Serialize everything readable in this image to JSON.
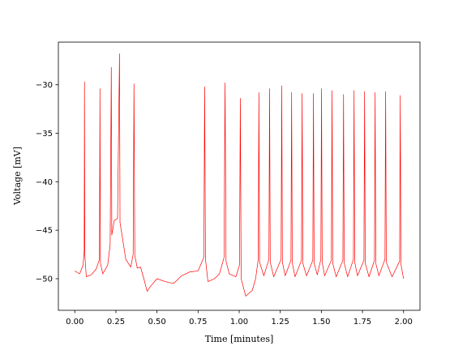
{
  "chart_data": {
    "type": "line",
    "xlabel": "Time [minutes]",
    "ylabel": "Voltage [mV]",
    "xlim": [
      -0.1,
      2.1
    ],
    "ylim": [
      -53.26,
      -25.6
    ],
    "xticks": [
      {
        "value": 0,
        "label": "0.00"
      },
      {
        "value": 0.25,
        "label": "0.25"
      },
      {
        "value": 0.5,
        "label": "0.50"
      },
      {
        "value": 0.75,
        "label": "0.75"
      },
      {
        "value": 1,
        "label": "1.00"
      },
      {
        "value": 1.25,
        "label": "1.25"
      },
      {
        "value": 1.5,
        "label": "1.50"
      },
      {
        "value": 1.75,
        "label": "1.75"
      },
      {
        "value": 2,
        "label": "2.00"
      }
    ],
    "yticks": [
      {
        "value": -50,
        "label": "−50"
      },
      {
        "value": -45,
        "label": "−45"
      },
      {
        "value": -40,
        "label": "−40"
      },
      {
        "value": -35,
        "label": "−35"
      },
      {
        "value": -30,
        "label": "−30"
      }
    ],
    "grid": false,
    "x": [
      0,
      0.03,
      0.05,
      0.057,
      0.059,
      0.061,
      0.07,
      0.1,
      0.13,
      0.15,
      0.153,
      0.156,
      0.17,
      0.2,
      0.215,
      0.222,
      0.225,
      0.24,
      0.26,
      0.272,
      0.275,
      0.29,
      0.31,
      0.34,
      0.355,
      0.36,
      0.365,
      0.38,
      0.4,
      0.42,
      0.44,
      0.46,
      0.5,
      0.55,
      0.6,
      0.65,
      0.7,
      0.75,
      0.785,
      0.79,
      0.795,
      0.81,
      0.85,
      0.88,
      0.908,
      0.914,
      0.92,
      0.94,
      0.98,
      1.002,
      1.007,
      1.012,
      1.04,
      1.08,
      1.1,
      1.116,
      1.12,
      1.124,
      1.15,
      1.181,
      1.185,
      1.189,
      1.21,
      1.255,
      1.259,
      1.263,
      1.28,
      1.315,
      1.319,
      1.323,
      1.34,
      1.379,
      1.383,
      1.387,
      1.41,
      1.448,
      1.452,
      1.456,
      1.475,
      1.497,
      1.501,
      1.505,
      1.52,
      1.561,
      1.565,
      1.569,
      1.59,
      1.631,
      1.635,
      1.639,
      1.66,
      1.695,
      1.699,
      1.703,
      1.72,
      1.759,
      1.763,
      1.767,
      1.79,
      1.823,
      1.827,
      1.831,
      1.85,
      1.887,
      1.891,
      1.895,
      1.93,
      1.976,
      1.98,
      1.984,
      2.0
    ],
    "series": [
      {
        "color": "#ff0000",
        "values": [
          -49.2,
          -49.5,
          -48.6,
          -47.2,
          -29.7,
          -47.6,
          -49.8,
          -49.6,
          -49.0,
          -48.0,
          -30.4,
          -48.4,
          -49.5,
          -48.6,
          -46.5,
          -28.2,
          -45.5,
          -44.0,
          -43.8,
          -26.8,
          -44.2,
          -45.8,
          -48.0,
          -48.8,
          -47.5,
          -29.9,
          -47.6,
          -48.9,
          -48.8,
          -50.0,
          -51.3,
          -50.8,
          -50.0,
          -50.3,
          -50.5,
          -49.7,
          -49.3,
          -49.2,
          -47.8,
          -30.2,
          -48.0,
          -50.3,
          -50.0,
          -49.5,
          -47.8,
          -29.8,
          -48.2,
          -49.5,
          -49.8,
          -48.6,
          -31.4,
          -50.0,
          -51.8,
          -51.2,
          -50.0,
          -48.0,
          -30.8,
          -48.3,
          -49.7,
          -48.0,
          -30.4,
          -48.3,
          -49.8,
          -48.0,
          -30.1,
          -48.3,
          -49.7,
          -48.1,
          -30.8,
          -48.4,
          -49.8,
          -48.1,
          -30.9,
          -48.4,
          -49.7,
          -48.1,
          -30.9,
          -48.4,
          -49.6,
          -48.0,
          -30.4,
          -48.3,
          -49.7,
          -48.1,
          -30.6,
          -48.4,
          -49.8,
          -48.1,
          -31.0,
          -48.4,
          -49.8,
          -48.0,
          -30.6,
          -48.3,
          -49.7,
          -48.1,
          -30.7,
          -48.4,
          -49.8,
          -48.1,
          -30.8,
          -48.4,
          -49.7,
          -48.0,
          -30.7,
          -48.3,
          -49.8,
          -48.2,
          -31.1,
          -48.5,
          -50.0
        ]
      }
    ]
  }
}
